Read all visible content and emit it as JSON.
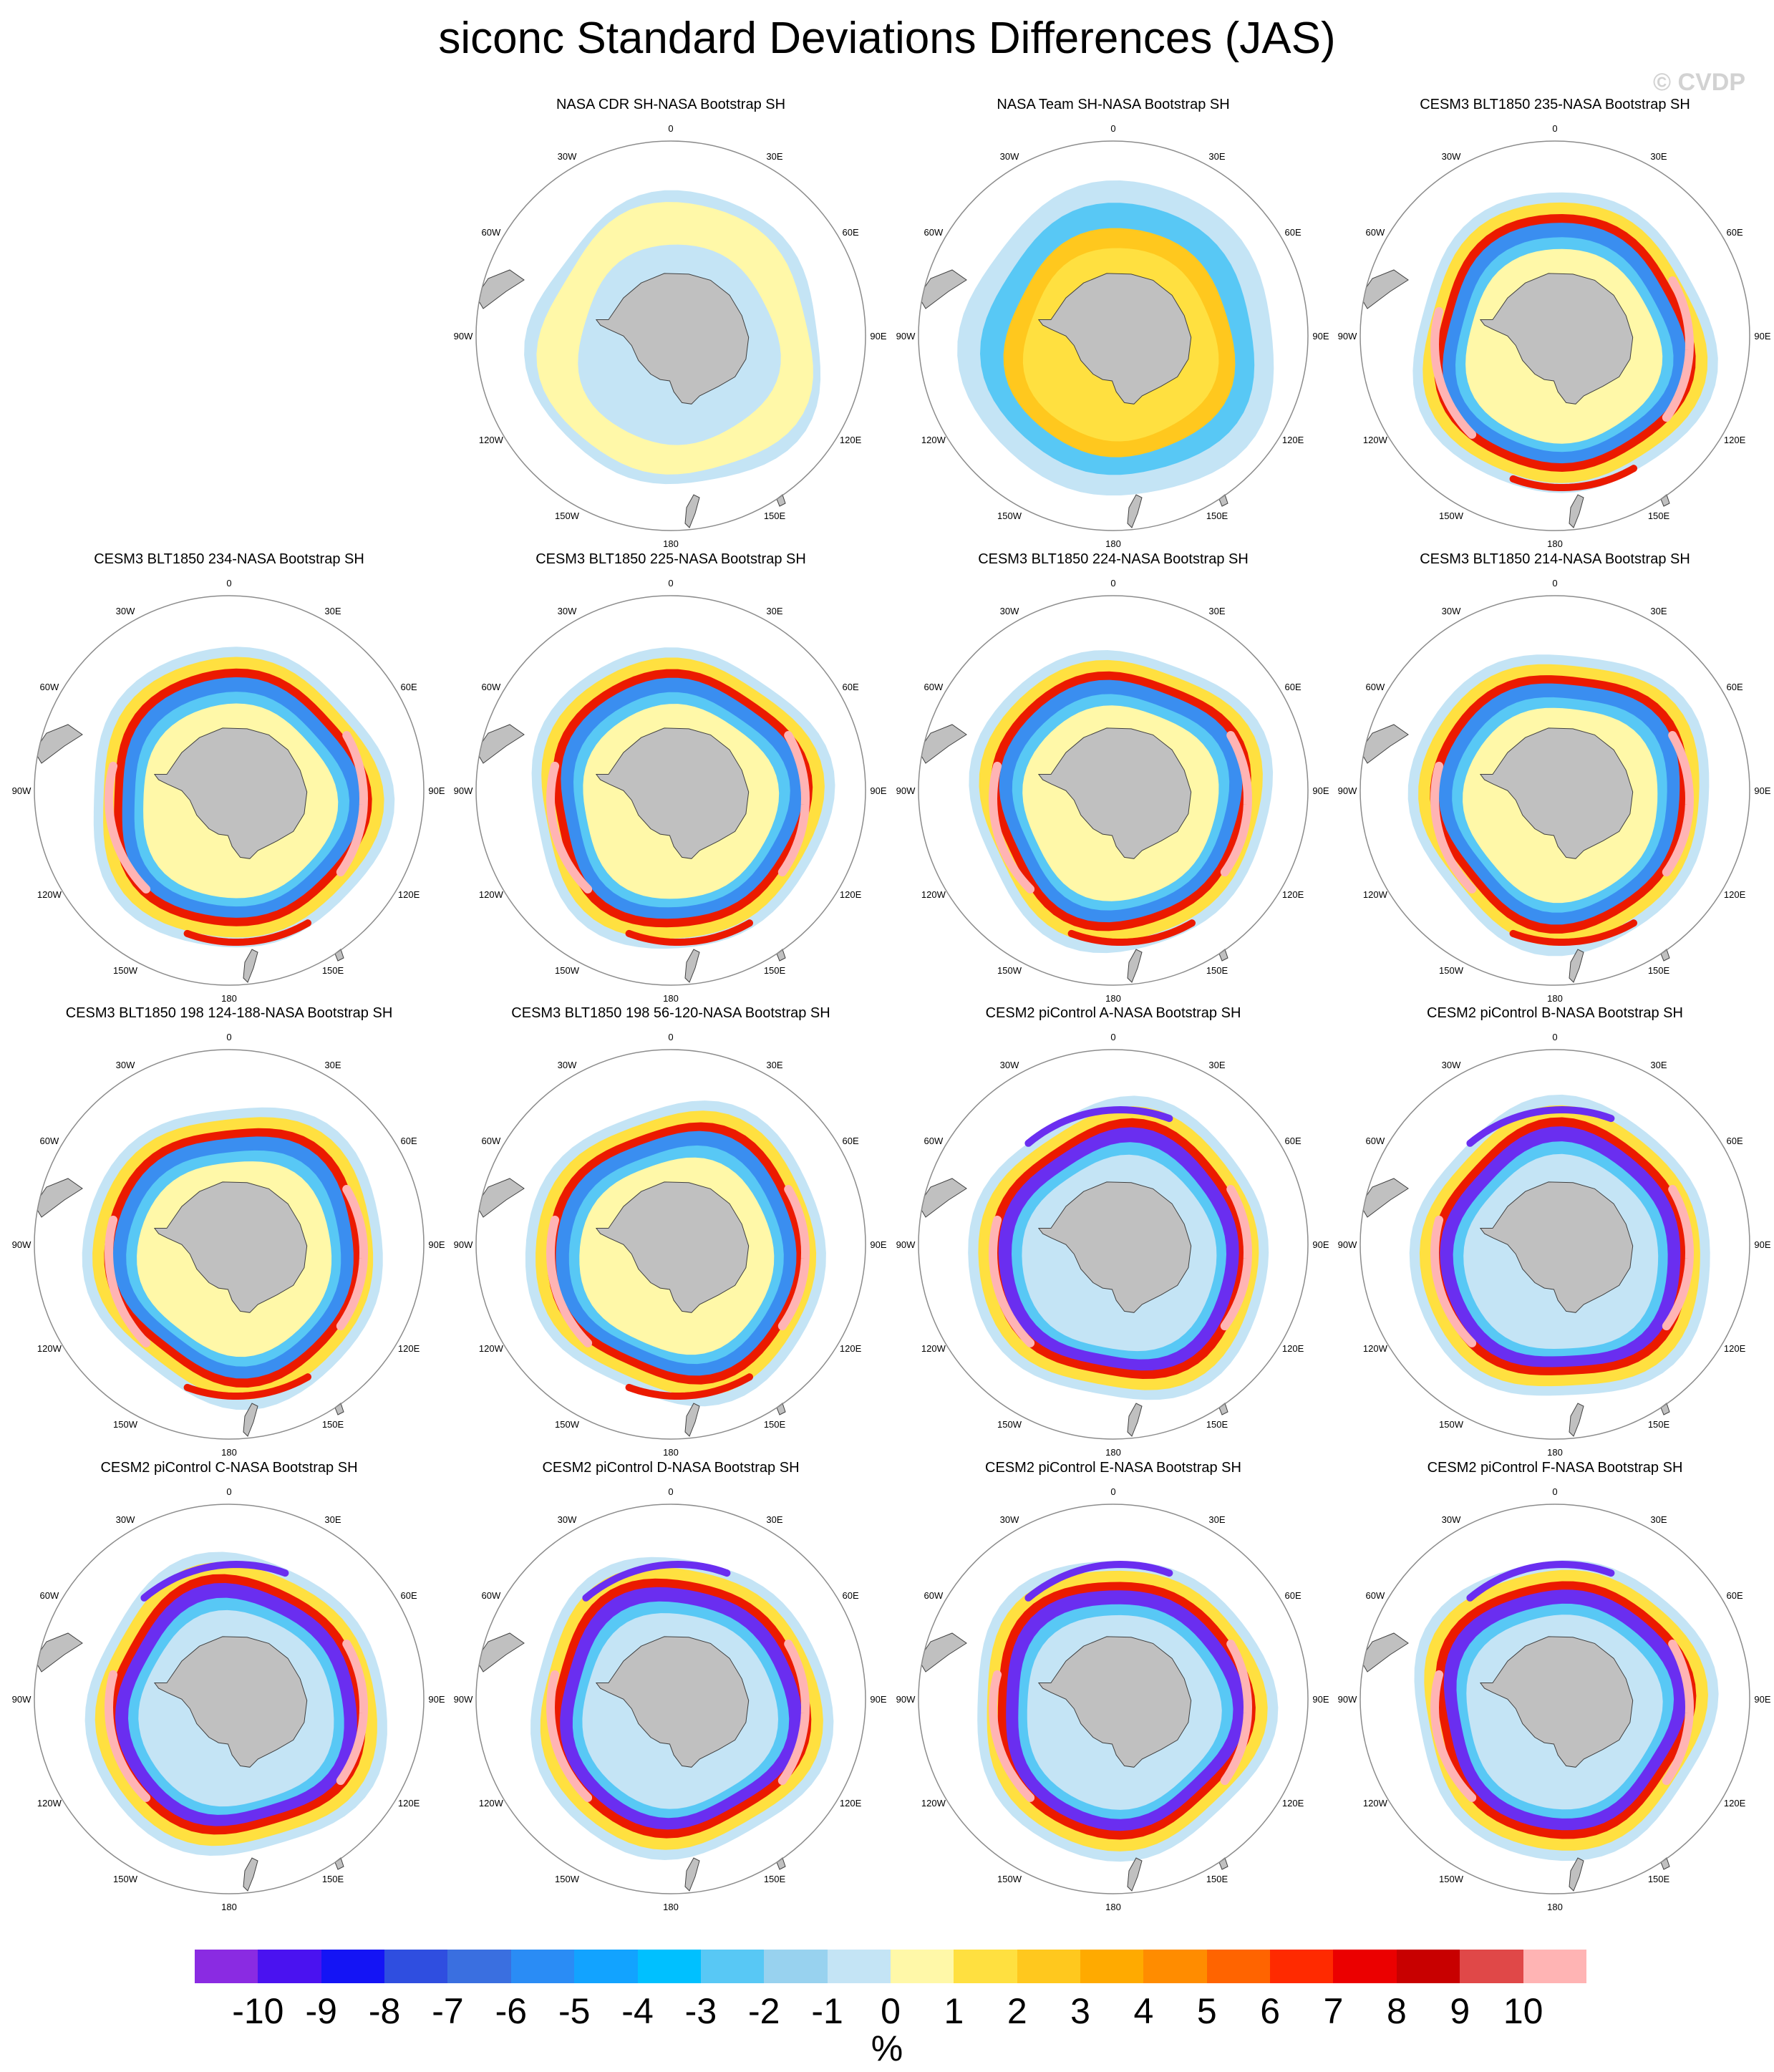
{
  "title": "siconc Standard Deviations Differences (JAS)",
  "watermark": "© CVDP",
  "lon_labels": [
    {
      "text": "0",
      "deg": 0
    },
    {
      "text": "30E",
      "deg": 30
    },
    {
      "text": "60E",
      "deg": 60
    },
    {
      "text": "90E",
      "deg": 90
    },
    {
      "text": "120E",
      "deg": 120
    },
    {
      "text": "150E",
      "deg": 150
    },
    {
      "text": "180",
      "deg": 180
    },
    {
      "text": "150W",
      "deg": 210
    },
    {
      "text": "120W",
      "deg": 240
    },
    {
      "text": "90W",
      "deg": 270
    },
    {
      "text": "60W",
      "deg": 300
    },
    {
      "text": "30W",
      "deg": 330
    }
  ],
  "panels": [
    {
      "title": "",
      "style": "empty"
    },
    {
      "title": "NASA CDR SH-NASA Bootstrap SH",
      "style": "obs_cdr"
    },
    {
      "title": "NASA Team SH-NASA Bootstrap SH",
      "style": "obs_team"
    },
    {
      "title": "CESM3 BLT1850 235-NASA Bootstrap SH",
      "style": "model"
    },
    {
      "title": "CESM3 BLT1850 234-NASA Bootstrap SH",
      "style": "model"
    },
    {
      "title": "CESM3 BLT1850 225-NASA Bootstrap SH",
      "style": "model"
    },
    {
      "title": "CESM3 BLT1850 224-NASA Bootstrap SH",
      "style": "model"
    },
    {
      "title": "CESM3 BLT1850 214-NASA Bootstrap SH",
      "style": "model"
    },
    {
      "title": "CESM3 BLT1850 198 124-188-NASA Bootstrap SH",
      "style": "model"
    },
    {
      "title": "CESM3 BLT1850 198 56-120-NASA Bootstrap SH",
      "style": "model"
    },
    {
      "title": "CESM2 piControl A-NASA Bootstrap SH",
      "style": "cesm2"
    },
    {
      "title": "CESM2 piControl B-NASA Bootstrap SH",
      "style": "cesm2"
    },
    {
      "title": "CESM2 piControl C-NASA Bootstrap SH",
      "style": "cesm2"
    },
    {
      "title": "CESM2 piControl D-NASA Bootstrap SH",
      "style": "cesm2"
    },
    {
      "title": "CESM2 piControl E-NASA Bootstrap SH",
      "style": "cesm2"
    },
    {
      "title": "CESM2 piControl F-NASA Bootstrap SH",
      "style": "cesm2"
    }
  ],
  "colorbar": {
    "units": "%",
    "tick_labels": [
      "-10",
      "-9",
      "-8",
      "-7",
      "-6",
      "-5",
      "-4",
      "-3",
      "-2",
      "-1",
      "0",
      "1",
      "2",
      "3",
      "4",
      "5",
      "6",
      "7",
      "8",
      "9",
      "10"
    ],
    "colors": [
      "#8a2be2",
      "#4a12f0",
      "#1414f5",
      "#2f4ee0",
      "#3a6fe0",
      "#2a8cf5",
      "#12a3ff",
      "#00c0ff",
      "#58c8f5",
      "#98d2ef",
      "#c4e4f5",
      "#fff8a8",
      "#ffe040",
      "#ffc81e",
      "#ffaa00",
      "#ff8c00",
      "#ff6400",
      "#ff2a00",
      "#eb0000",
      "#c80000",
      "#e04848",
      "#ffb4b4"
    ]
  },
  "map_colors": {
    "land": "#c0c0c0",
    "land_edge": "#404040",
    "circle_edge": "#8c8c8c",
    "light_blue": "#c4e4f5",
    "light_yellow": "#fff8a8",
    "yellow": "#ffe040",
    "orange": "#ffc81e",
    "blue": "#3a8ef0",
    "sky": "#58c8f5",
    "red": "#eb1a00",
    "pink": "#ffb4b4",
    "purple": "#6a2ef0"
  }
}
